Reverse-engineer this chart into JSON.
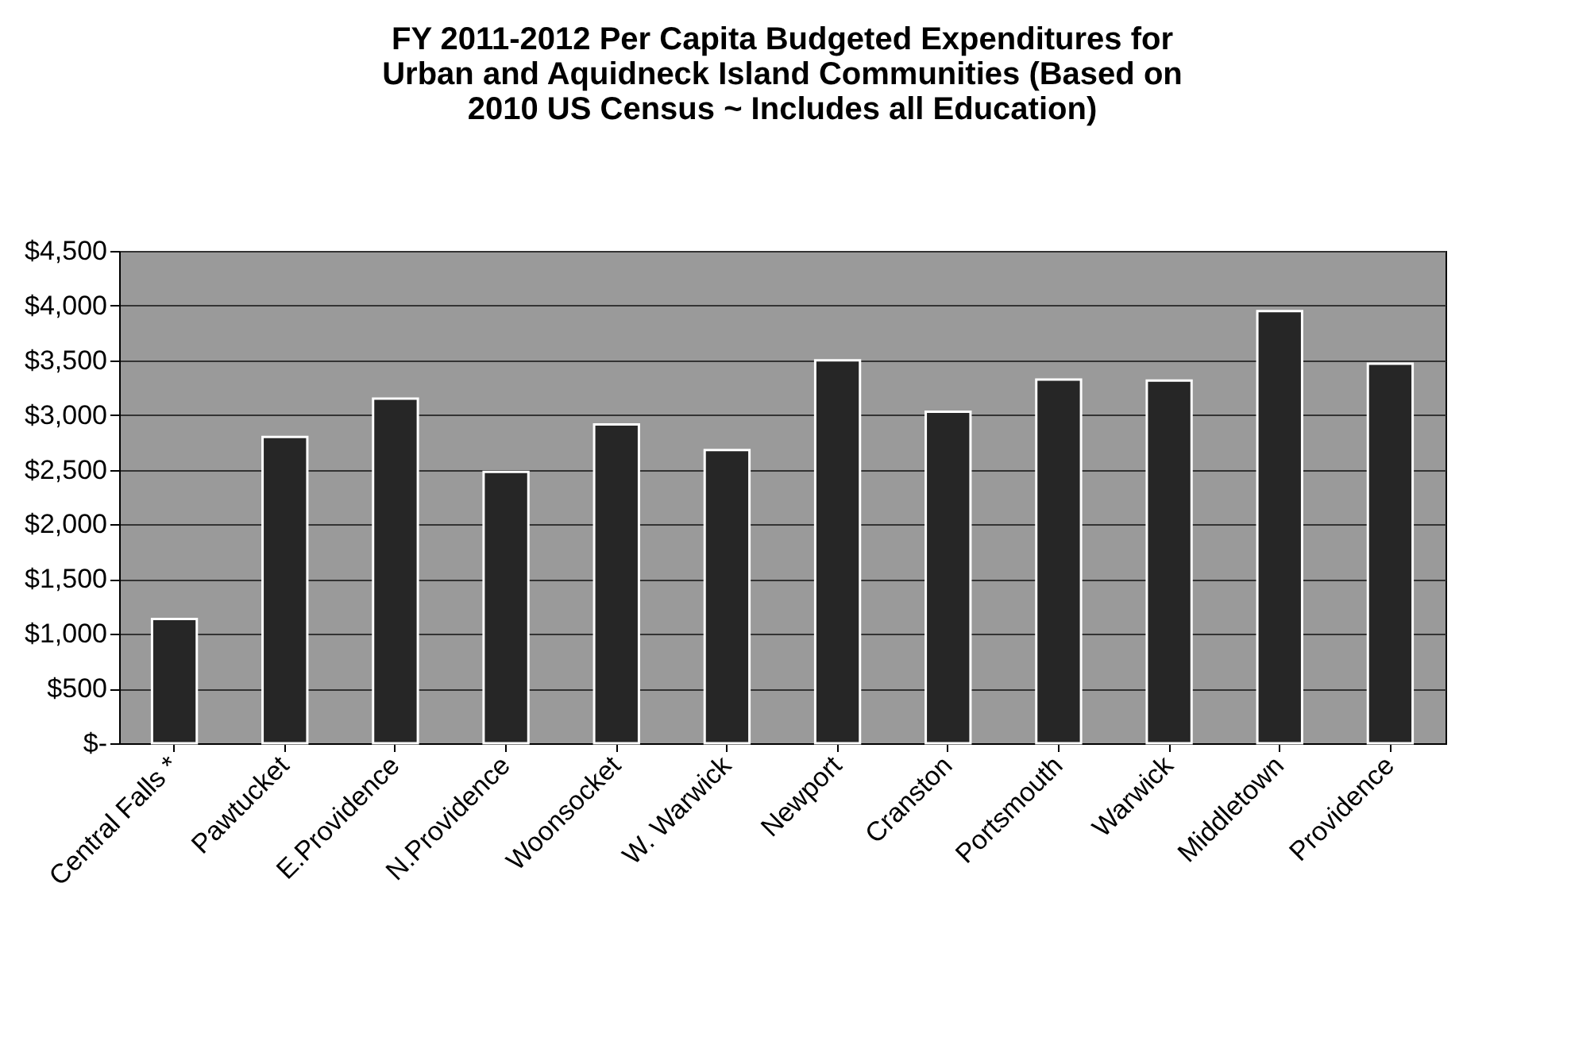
{
  "chart_data": {
    "type": "bar",
    "title": [
      "FY 2011-2012 Per Capita Budgeted Expenditures for",
      "Urban and Aquidneck Island Communities (Based on",
      "2010 US Census ~ Includes all Education)"
    ],
    "categories": [
      "Central Falls *",
      "Pawtucket",
      "E.Providence",
      "N.Providence",
      "Woonsocket",
      "W. Warwick",
      "Newport",
      "Cranston",
      "Portsmouth",
      "Warwick",
      "Middletown",
      "Providence"
    ],
    "values": [
      1135,
      2800,
      3150,
      2480,
      2915,
      2680,
      3500,
      3030,
      3325,
      3315,
      3950,
      3470
    ],
    "color": "#262626",
    "ylim": [
      0,
      4500
    ],
    "yticks": [
      {
        "value": 0,
        "label": "$-"
      },
      {
        "value": 500,
        "label": "$500"
      },
      {
        "value": 1000,
        "label": "$1,000"
      },
      {
        "value": 1500,
        "label": "$1,500"
      },
      {
        "value": 2000,
        "label": "$2,000"
      },
      {
        "value": 2500,
        "label": "$2,500"
      },
      {
        "value": 3000,
        "label": "$3,000"
      },
      {
        "value": 3500,
        "label": "$3,500"
      },
      {
        "value": 4000,
        "label": "$4,000"
      },
      {
        "value": 4500,
        "label": "$4,500"
      }
    ],
    "grid": "y"
  }
}
